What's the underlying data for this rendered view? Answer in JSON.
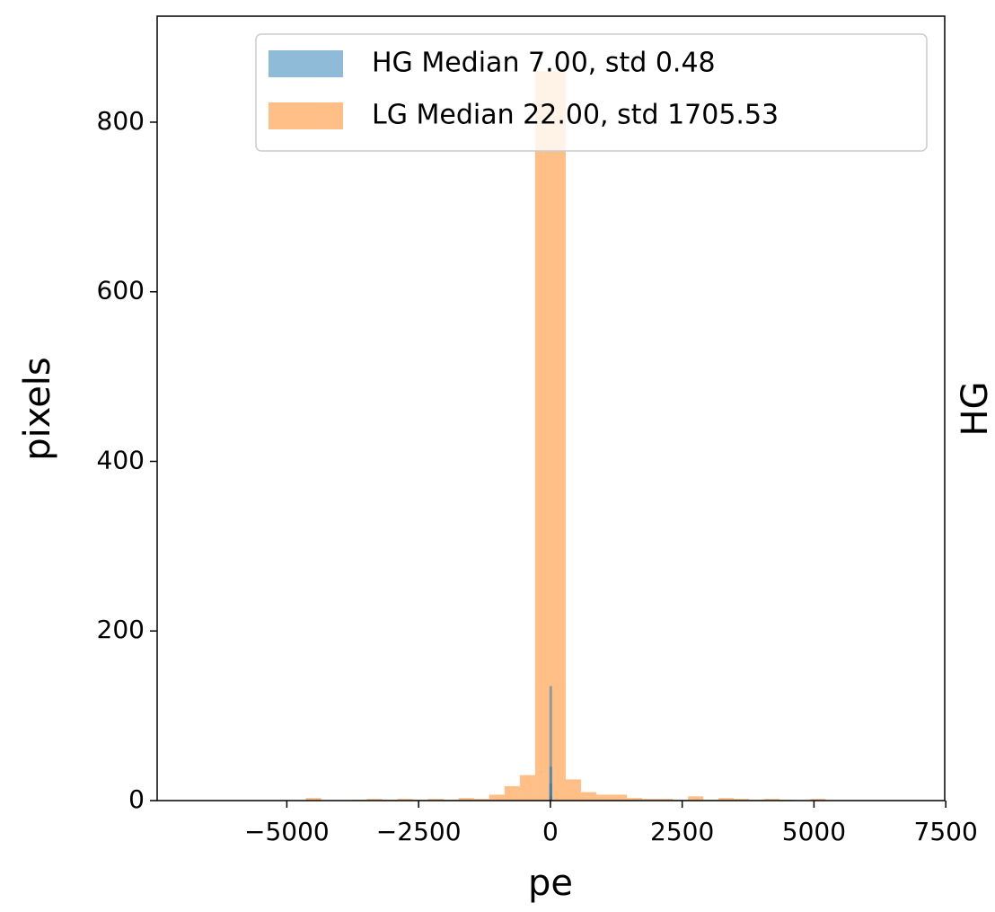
{
  "chart_data": {
    "type": "histogram",
    "xlabel": "pe",
    "ylabel": "pixels",
    "right_label": "HG",
    "xlim": [
      -7460,
      7480
    ],
    "ylim": [
      0,
      925
    ],
    "xticks": [
      {
        "value": -5000,
        "label": "−5000"
      },
      {
        "value": -2500,
        "label": "−2500"
      },
      0,
      2500,
      5000,
      7500
    ],
    "yticks": [
      0,
      200,
      400,
      600,
      800
    ],
    "legend": "upper right",
    "series": [
      {
        "name": "HG Median 7.00, std  0.48",
        "color": "#1f77b4",
        "bins": [
          5,
          6,
          7,
          8,
          9
        ],
        "values": [
          20,
          135,
          40,
          5
        ]
      },
      {
        "name": "LG Median 22.00, std 1705.53",
        "color": "#ff7f0e",
        "bins": [
          -4930,
          -4640,
          -4350,
          -4060,
          -3770,
          -3480,
          -3190,
          -2900,
          -2610,
          -2320,
          -2030,
          -1740,
          -1450,
          -1160,
          -870,
          -580,
          -290,
          0,
          290,
          580,
          870,
          1160,
          1450,
          1740,
          2030,
          2320,
          2610,
          2900,
          3190,
          3480,
          3770,
          4060,
          4350,
          4640,
          4930,
          5220
        ],
        "values": [
          0,
          3,
          0,
          0,
          1,
          2,
          1,
          2,
          1,
          2,
          1,
          3,
          2,
          7,
          17,
          30,
          860,
          860,
          25,
          10,
          7,
          7,
          3,
          2,
          2,
          1,
          5,
          1,
          3,
          2,
          1,
          2,
          1,
          0,
          2
        ]
      }
    ]
  }
}
